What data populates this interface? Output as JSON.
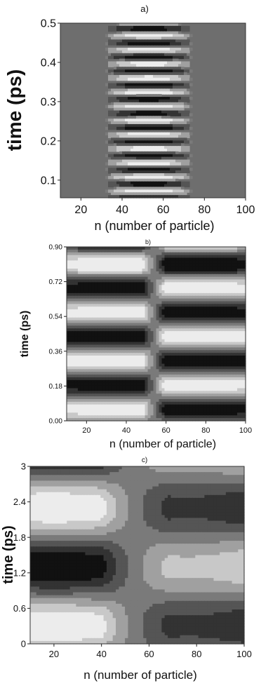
{
  "chart_data": [
    {
      "type": "heatmap",
      "title": "a)",
      "xlabel": "n (number of particle)",
      "ylabel": "time (ps)",
      "xlim": [
        10,
        100
      ],
      "ylim": [
        0.055,
        0.5
      ],
      "xticks": [
        20,
        40,
        60,
        80,
        100
      ],
      "yticks": [
        0.1,
        0.2,
        0.3,
        0.4,
        0.5
      ],
      "xtick_labels": [
        "20",
        "40",
        "60",
        "80",
        "100"
      ],
      "ytick_labels": [
        "0.1",
        "0.2",
        "0.3",
        "0.4",
        "0.5"
      ],
      "pattern": {
        "kind": "oscillating_center_band",
        "center_n": 53,
        "half_width_n": 22,
        "period_ps": 0.036,
        "background": "#6e6e6e"
      }
    },
    {
      "type": "heatmap",
      "title": "b)",
      "xlabel": "n (number of particle)",
      "ylabel": "time (ps)",
      "xlim": [
        10,
        100
      ],
      "ylim": [
        0.0,
        0.9
      ],
      "xticks": [
        20,
        40,
        60,
        80,
        100
      ],
      "yticks": [
        0.0,
        0.18,
        0.36,
        0.54,
        0.72,
        0.9
      ],
      "xtick_labels": [
        "20",
        "40",
        "60",
        "80",
        "100"
      ],
      "ytick_labels": [
        "0.00",
        "0.18",
        "0.36",
        "0.54",
        "0.72",
        "0.90"
      ],
      "pattern": {
        "kind": "antiphase_halves",
        "node_n": 54,
        "period_ps": 0.25,
        "background": "#6e6e6e"
      }
    },
    {
      "type": "heatmap",
      "title": "c)",
      "xlabel": "n (number of particle)",
      "ylabel": "time (ps)",
      "xlim": [
        10,
        100
      ],
      "ylim": [
        0.0,
        3.0
      ],
      "xticks": [
        20,
        40,
        60,
        80,
        100
      ],
      "yticks": [
        0,
        0.6,
        1.2,
        1.8,
        2.4,
        3
      ],
      "xtick_labels": [
        "20",
        "40",
        "60",
        "80",
        "100"
      ],
      "ytick_labels": [
        "0",
        "0.6",
        "1.2",
        "1.8",
        "2.4",
        "3"
      ],
      "pattern": {
        "kind": "antiphase_halves_slow",
        "node_n": 54,
        "period_ps": 2.0,
        "background": "#8a8a8a"
      }
    }
  ]
}
